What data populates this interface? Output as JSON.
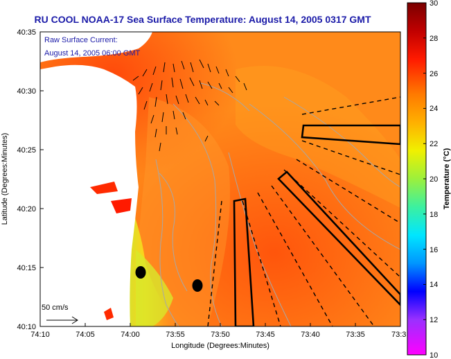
{
  "title": "RU COOL  NOAA-17  Sea Surface Temperature:  August 14, 2005 0317 GMT",
  "current_legend": {
    "line1": "Raw Surface Current:",
    "line2": "August 14, 2005 06:00 GMT"
  },
  "scale_label": "50 cm/s",
  "axes": {
    "xlabel": "Longitude (Degrees:Minutes)",
    "ylabel": "Latitude (Degrees:Minutes)",
    "x_ticks": [
      "74:10",
      "74:05",
      "74:00",
      "73:55",
      "73:50",
      "73:45",
      "73:40",
      "73:35",
      "73:3"
    ],
    "y_ticks": [
      "40:35",
      "40:30",
      "40:25",
      "40:20",
      "40:15",
      "40:10"
    ]
  },
  "colorbar": {
    "label": "Temperature (°C)",
    "ticks": [
      "30",
      "28",
      "26",
      "24",
      "22",
      "20",
      "18",
      "16",
      "14",
      "12",
      "10"
    ],
    "min": 10,
    "max": 30
  },
  "colors": {
    "title": "#1a1aa8",
    "land": "#ffffff",
    "sea_warm": "#ff6a1a",
    "sea_cool": "#b6f03c"
  }
}
